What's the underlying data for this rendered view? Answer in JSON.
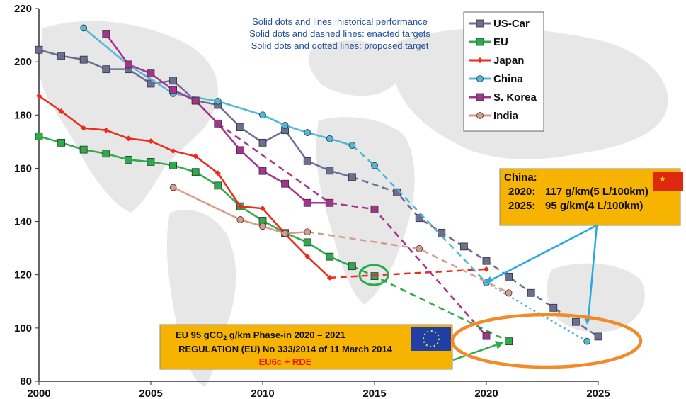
{
  "chart_data": {
    "type": "line",
    "xlim": [
      2000,
      2025
    ],
    "ylim": [
      80,
      220
    ],
    "x_ticks": [
      2000,
      2005,
      2010,
      2015,
      2020,
      2025
    ],
    "y_ticks": [
      80,
      100,
      120,
      140,
      160,
      180,
      200,
      220
    ],
    "grid": false,
    "legend_position": "top-right",
    "series": [
      {
        "name": "US-Car",
        "color": "#6b6f93",
        "marker": "square",
        "historical": [
          [
            2000,
            204.5
          ],
          [
            2001,
            202.2
          ],
          [
            2002,
            200.8
          ],
          [
            2003,
            197.2
          ],
          [
            2004,
            197.2
          ],
          [
            2005,
            191.8
          ],
          [
            2006,
            192.9
          ],
          [
            2007,
            185.4
          ],
          [
            2008,
            183.8
          ],
          [
            2009,
            175.4
          ],
          [
            2010,
            169.6
          ],
          [
            2011,
            174.3
          ],
          [
            2012,
            162.7
          ],
          [
            2013,
            159.1
          ],
          [
            2014,
            156.7
          ]
        ],
        "enacted": [
          [
            2014,
            156.7
          ],
          [
            2016,
            151.0
          ],
          [
            2017,
            141.3
          ],
          [
            2018,
            135.8
          ],
          [
            2019,
            130.6
          ],
          [
            2020,
            125.2
          ],
          [
            2021,
            119.3
          ],
          [
            2022,
            113.2
          ],
          [
            2023,
            107.6
          ],
          [
            2024,
            102.3
          ],
          [
            2025,
            96.8
          ]
        ],
        "proposed": []
      },
      {
        "name": "EU",
        "color": "#2cab4a",
        "marker": "square",
        "historical": [
          [
            2000,
            172.0
          ],
          [
            2001,
            169.6
          ],
          [
            2002,
            167.0
          ],
          [
            2003,
            165.5
          ],
          [
            2004,
            163.2
          ],
          [
            2005,
            162.4
          ],
          [
            2006,
            161.1
          ],
          [
            2007,
            158.6
          ],
          [
            2008,
            153.5
          ],
          [
            2009,
            145.7
          ],
          [
            2010,
            140.3
          ],
          [
            2011,
            135.7
          ],
          [
            2012,
            132.2
          ],
          [
            2013,
            126.8
          ],
          [
            2014,
            123.2
          ]
        ],
        "enacted": [
          [
            2014,
            123.2
          ],
          [
            2015,
            119.5
          ],
          [
            2021,
            95.0
          ]
        ],
        "proposed": []
      },
      {
        "name": "Japan",
        "color": "#ee2a1a",
        "marker": "diamond",
        "historical": [
          [
            2000,
            187.2
          ],
          [
            2001,
            181.4
          ],
          [
            2002,
            175.1
          ],
          [
            2003,
            174.3
          ],
          [
            2004,
            171.2
          ],
          [
            2005,
            170.2
          ],
          [
            2006,
            166.5
          ],
          [
            2007,
            164.5
          ],
          [
            2008,
            158.2
          ],
          [
            2009,
            145.7
          ],
          [
            2010,
            144.9
          ],
          [
            2011,
            135.4
          ],
          [
            2012,
            126.8
          ],
          [
            2013,
            118.9
          ]
        ],
        "enacted": [
          [
            2013,
            118.9
          ],
          [
            2020,
            122.1
          ]
        ],
        "proposed": []
      },
      {
        "name": "China",
        "color": "#4fb9d8",
        "marker": "circle",
        "historical": [
          [
            2002,
            212.7
          ],
          [
            2004,
            198.8
          ],
          [
            2006,
            188.1
          ],
          [
            2008,
            185.2
          ],
          [
            2010,
            180.0
          ],
          [
            2011,
            176.1
          ],
          [
            2012,
            173.4
          ],
          [
            2013,
            171.1
          ],
          [
            2014,
            168.6
          ]
        ],
        "enacted": [
          [
            2014,
            168.6
          ],
          [
            2015,
            161.0
          ],
          [
            2020,
            117.0
          ]
        ],
        "proposed": [
          [
            2020,
            117.0
          ],
          [
            2024.5,
            95.0
          ]
        ]
      },
      {
        "name": "S. Korea",
        "color": "#a4348b",
        "marker": "square",
        "historical": [
          [
            2003,
            210.4
          ],
          [
            2004,
            199.0
          ],
          [
            2005,
            195.6
          ],
          [
            2006,
            189.4
          ],
          [
            2007,
            185.4
          ],
          [
            2008,
            176.8
          ],
          [
            2009,
            166.8
          ],
          [
            2010,
            159.0
          ],
          [
            2011,
            154.2
          ],
          [
            2012,
            147.0
          ],
          [
            2013,
            147.0
          ]
        ],
        "enacted": [
          [
            2007,
            185.4
          ],
          [
            2008,
            176.8
          ],
          [
            2013,
            147.0
          ],
          [
            2015,
            144.6
          ],
          [
            2020,
            97.0
          ]
        ],
        "proposed": []
      },
      {
        "name": "India",
        "color": "#d89b8a",
        "marker": "circle",
        "historical": [
          [
            2006,
            152.8
          ],
          [
            2009,
            140.7
          ],
          [
            2010,
            138.2
          ],
          [
            2011,
            135.5
          ],
          [
            2012,
            136.1
          ]
        ],
        "enacted": [
          [
            2012,
            136.1
          ],
          [
            2017,
            129.8
          ],
          [
            2021,
            113.2
          ]
        ],
        "proposed": []
      }
    ]
  },
  "annotations": {
    "line_style_notes": [
      "Solid dots and lines: historical performance",
      "Solid dots and dashed lines: enacted targets",
      "Solid dots and dotted lines: proposed target"
    ],
    "china_box": {
      "title": "China:",
      "line1_year": "2020:",
      "line1_value": "117 g/km(5 L/100km)",
      "line2_year": "2025:",
      "line2_value": "95 g/km(4 L/100km)"
    },
    "eu_box": {
      "line1_pre": "EU  95 gCO",
      "line1_sub": "2",
      "line1_post": " g/km Phase-in 2020 – 2021",
      "line2": "REGULATION (EU) No 333/2014 of 11 March 2014",
      "line3": "EU6c + RDE"
    }
  }
}
